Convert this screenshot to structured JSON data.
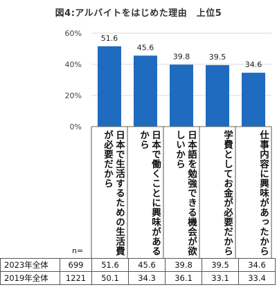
{
  "title": "図4:アルバイトをはじめた理由　上位5",
  "n_label": "n=",
  "chart_data": {
    "type": "bar",
    "categories": [
      "日本で生活するための生活費が必要だから",
      "日本で働くことに興味があるから",
      "日本語を勉強できる機会が欲しいから",
      "学費としてお金が必要だから",
      "仕事内容に興味があったから"
    ],
    "values": [
      51.6,
      45.6,
      39.8,
      39.5,
      34.6
    ],
    "ylim": [
      0,
      60
    ],
    "yticks": [
      "0%",
      "20%",
      "40%",
      "60%"
    ],
    "color": "#1f6bbf"
  },
  "table": {
    "rows": [
      {
        "label": "2023年全体",
        "n": "699",
        "values": [
          "51.6",
          "45.6",
          "39.8",
          "39.5",
          "34.6"
        ]
      },
      {
        "label": "2019年全体",
        "n": "1221",
        "values": [
          "50.1",
          "34.3",
          "36.1",
          "33.1",
          "33.4"
        ]
      }
    ]
  }
}
